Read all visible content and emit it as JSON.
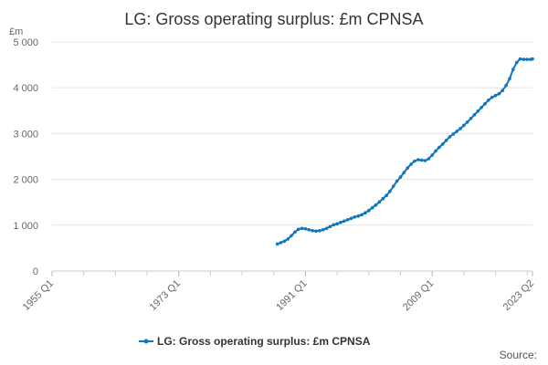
{
  "chart_data": {
    "type": "line",
    "title": "LG: Gross operating surplus: £m CPNSA",
    "ylabel": "£m",
    "xlabel": "",
    "xlim": [
      1955.0,
      2023.25
    ],
    "ylim": [
      0,
      5000
    ],
    "y_ticks": [
      {
        "value": 0,
        "label": "0"
      },
      {
        "value": 1000,
        "label": "1 000"
      },
      {
        "value": 2000,
        "label": "2 000"
      },
      {
        "value": 3000,
        "label": "3 000"
      },
      {
        "value": 4000,
        "label": "4 000"
      },
      {
        "value": 5000,
        "label": "5 000"
      }
    ],
    "x_ticks": [
      {
        "value": 1955.0,
        "label": "1955 Q1"
      },
      {
        "value": 1973.0,
        "label": "1973 Q1"
      },
      {
        "value": 1991.0,
        "label": "1991 Q1"
      },
      {
        "value": 2009.0,
        "label": "2009 Q1"
      },
      {
        "value": 2023.25,
        "label": "2023 Q2"
      }
    ],
    "x_minor_step": 4.5,
    "series": [
      {
        "name": "LG: Gross operating surplus: £m CPNSA",
        "color": "#0f75bc",
        "x": [
          1987.0,
          1987.5,
          1988.0,
          1988.5,
          1989.0,
          1989.5,
          1990.0,
          1990.5,
          1991.0,
          1991.5,
          1992.0,
          1992.5,
          1993.0,
          1993.5,
          1994.0,
          1994.5,
          1995.0,
          1995.5,
          1996.0,
          1996.5,
          1997.0,
          1997.5,
          1998.0,
          1998.5,
          1999.0,
          1999.5,
          2000.0,
          2000.5,
          2001.0,
          2001.5,
          2002.0,
          2002.5,
          2003.0,
          2003.5,
          2004.0,
          2004.5,
          2005.0,
          2005.5,
          2006.0,
          2006.5,
          2007.0,
          2007.5,
          2008.0,
          2008.5,
          2009.0,
          2009.5,
          2010.0,
          2010.5,
          2011.0,
          2011.5,
          2012.0,
          2012.5,
          2013.0,
          2013.5,
          2014.0,
          2014.5,
          2015.0,
          2015.5,
          2016.0,
          2016.5,
          2017.0,
          2017.5,
          2018.0,
          2018.5,
          2019.0,
          2019.5,
          2020.0,
          2020.5,
          2021.0,
          2021.5,
          2022.0,
          2022.5,
          2023.0,
          2023.25
        ],
        "values": [
          590,
          620,
          650,
          700,
          770,
          850,
          910,
          930,
          920,
          900,
          880,
          870,
          880,
          900,
          930,
          970,
          1010,
          1030,
          1060,
          1090,
          1120,
          1150,
          1180,
          1200,
          1230,
          1270,
          1320,
          1380,
          1440,
          1510,
          1580,
          1650,
          1740,
          1850,
          1960,
          2050,
          2150,
          2250,
          2330,
          2400,
          2430,
          2420,
          2410,
          2450,
          2530,
          2620,
          2700,
          2770,
          2850,
          2930,
          2990,
          3050,
          3110,
          3180,
          3250,
          3330,
          3410,
          3490,
          3570,
          3650,
          3730,
          3790,
          3830,
          3870,
          3940,
          4050,
          4200,
          4400,
          4550,
          4630,
          4620,
          4620,
          4620,
          4630
        ]
      }
    ],
    "legend_position": "bottom-center",
    "source_label": "Source:"
  }
}
